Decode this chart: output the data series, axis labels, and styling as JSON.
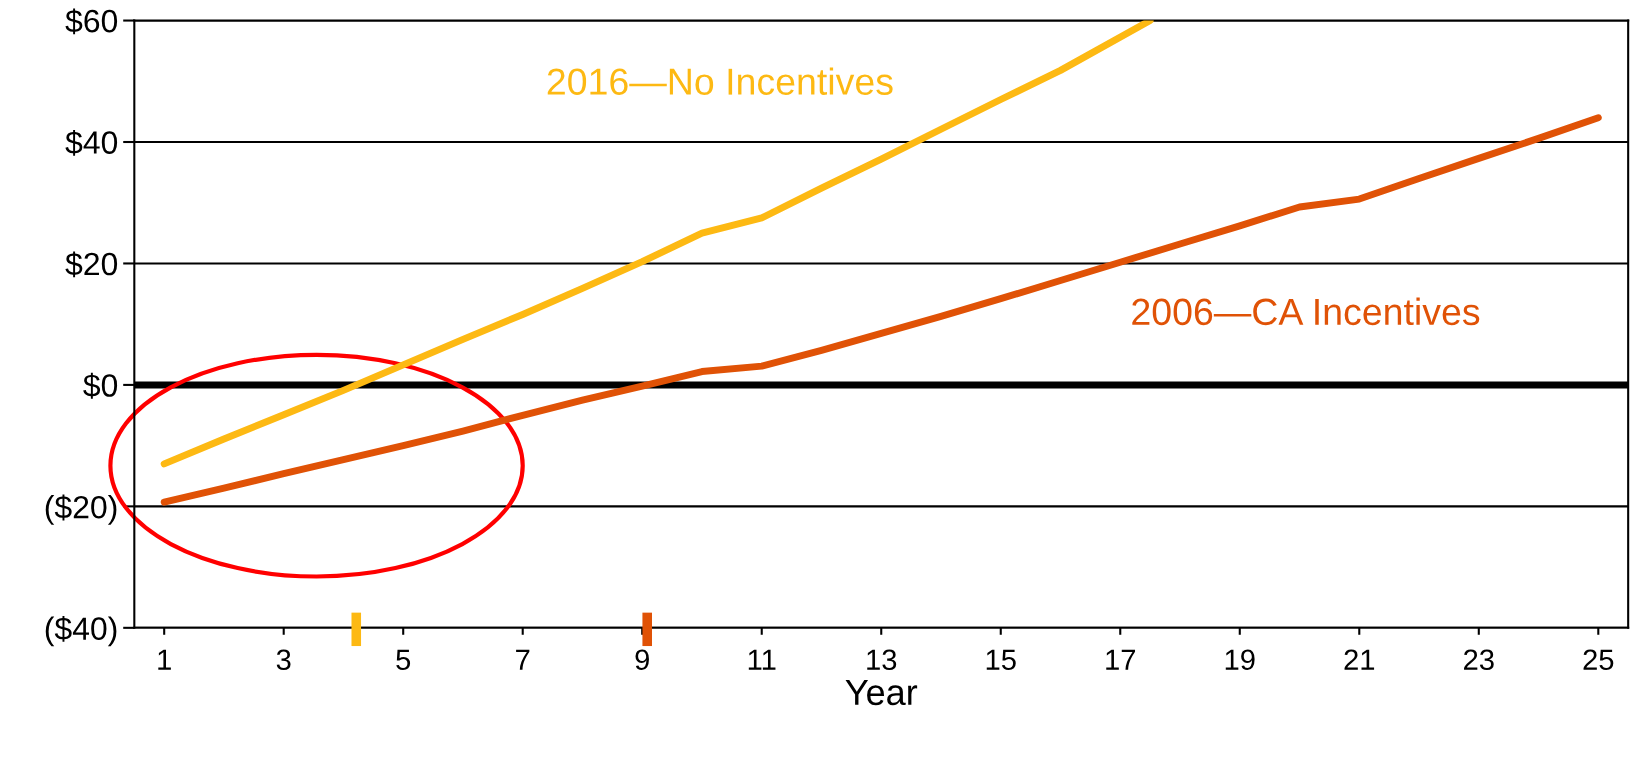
{
  "chart_data": {
    "type": "line",
    "xlabel": "Year",
    "series": [
      {
        "name": "2016—No Incentives",
        "color": "#fdb913",
        "x": [
          1,
          2,
          3,
          4,
          5,
          6,
          7,
          8,
          9,
          10,
          11,
          12,
          13,
          14,
          15,
          16,
          17.5
        ],
        "values": [
          -13,
          -8.9,
          -4.9,
          -0.9,
          3.3,
          7.5,
          11.6,
          15.9,
          20.3,
          25,
          27.5,
          32.4,
          37.2,
          42.1,
          47,
          51.8,
          60
        ]
      },
      {
        "name": "2006—CA Incentives",
        "color": "#e05206",
        "x": [
          1,
          2,
          3,
          4,
          5,
          6,
          7,
          8,
          9,
          10,
          11,
          12,
          13,
          14,
          15,
          16,
          17,
          18,
          19,
          20,
          21,
          22,
          23,
          24,
          25
        ],
        "values": [
          -19.3,
          -17,
          -14.6,
          -12.3,
          -10,
          -7.6,
          -5,
          -2.5,
          -0.2,
          2.2,
          3.1,
          5.7,
          8.5,
          11.3,
          14.2,
          17.2,
          20.2,
          23.2,
          26.2,
          29.3,
          30.6,
          34,
          37.3,
          40.6,
          44
        ]
      }
    ],
    "xlim": [
      0.5,
      25.5
    ],
    "xticks": [
      1,
      3,
      5,
      7,
      9,
      11,
      13,
      15,
      17,
      19,
      21,
      23,
      25
    ],
    "ylim": [
      -40,
      60
    ],
    "yticks": [
      {
        "value": -40,
        "label": "($40)"
      },
      {
        "value": -20,
        "label": "($20)"
      },
      {
        "value": 0,
        "label": "$0"
      },
      {
        "value": 20,
        "label": "$20"
      },
      {
        "value": 40,
        "label": "$40"
      },
      {
        "value": 60,
        "label": "$60"
      }
    ],
    "ref_lines": [
      {
        "axis": "y",
        "value": 0,
        "color": "#000000"
      }
    ],
    "grid": "y",
    "legend": false,
    "marker": "none",
    "line_style": "solid"
  }
}
